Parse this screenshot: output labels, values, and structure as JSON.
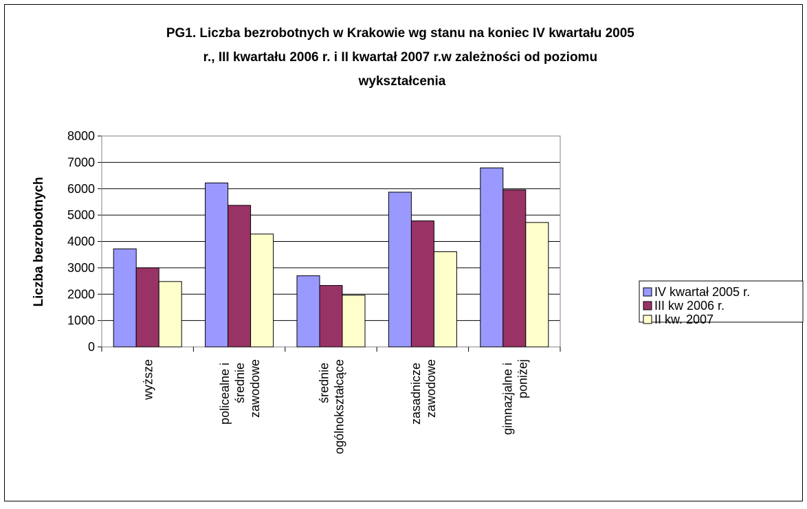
{
  "chart_data": {
    "type": "bar",
    "title": "PG1. Liczba bezrobotnych w Krakowie wg stanu na koniec IV kwartału 2005 r., III kwartału 2006 r. i II kwartał 2007 r.w zależności od poziomu wykształcenia",
    "y_label": "Liczba bezrobotnych",
    "categories": [
      "wyższe",
      "policealne i średnie zawodowe",
      "średnie ogólnokształcące",
      "zasadnicze zawodowe",
      "gimnazjalne i poniżej"
    ],
    "series": [
      {
        "name": "IV kwartał 2005 r.",
        "color": "#9999ff",
        "values": [
          3720,
          6220,
          2700,
          5870,
          6790
        ]
      },
      {
        "name": "III kw 2006 r.",
        "color": "#993366",
        "values": [
          3000,
          5370,
          2330,
          4780,
          5960
        ]
      },
      {
        "name": "II kw. 2007",
        "color": "#ffffcc",
        "values": [
          2480,
          4280,
          1960,
          3610,
          4720
        ]
      }
    ],
    "ylim": [
      0,
      8000
    ],
    "yticks": [
      0,
      1000,
      2000,
      3000,
      4000,
      5000,
      6000,
      7000,
      8000
    ],
    "grid": true,
    "legend": "right"
  }
}
